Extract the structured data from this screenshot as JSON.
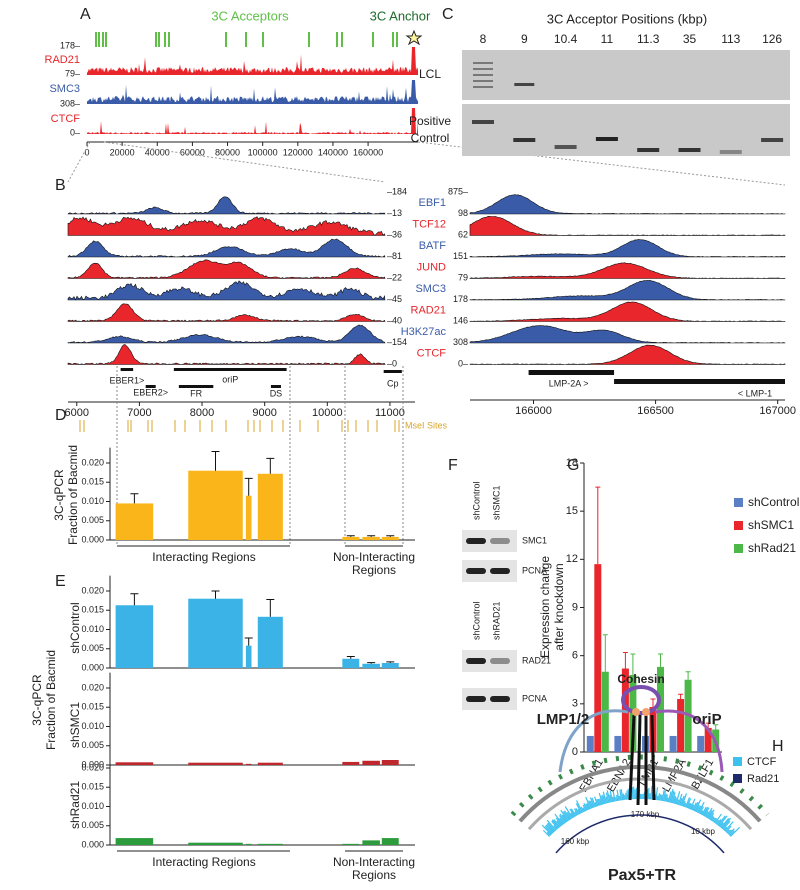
{
  "panel_labels": [
    "A",
    "B",
    "C",
    "D",
    "E",
    "F",
    "G",
    "H"
  ],
  "panel_A": {
    "acceptors_label": "3C Acceptors",
    "anchor_label": "3C Anchor",
    "tracks": [
      {
        "name": "RAD21",
        "color": "#e8262c"
      },
      {
        "name": "SMC3",
        "color": "#3a5ca8"
      },
      {
        "name": "CTCF",
        "color": "#e8262c"
      }
    ],
    "scale_labels": [
      "178–",
      "79–",
      "308–",
      "0–"
    ],
    "xlim": [
      0,
      185000
    ],
    "xticks": [
      0,
      20000,
      40000,
      60000,
      80000,
      100000,
      120000,
      140000,
      160000
    ]
  },
  "panel_B": {
    "tracks": [
      {
        "name": "EBF1",
        "color": "#3a5ca8"
      },
      {
        "name": "TCF12",
        "color": "#e8262c"
      },
      {
        "name": "BATF",
        "color": "#3a5ca8"
      },
      {
        "name": "JUND",
        "color": "#e8262c"
      },
      {
        "name": "SMC3",
        "color": "#3a5ca8"
      },
      {
        "name": "RAD21",
        "color": "#e8262c"
      },
      {
        "name": "H3K27ac",
        "color": "#3a5ca8"
      },
      {
        "name": "CTCF",
        "color": "#e8262c"
      }
    ],
    "left_scale_labels": [
      "–184",
      "–13",
      "–36",
      "–81",
      "–22",
      "–45",
      "–40",
      "–154",
      "–0"
    ],
    "right_scale_labels": [
      "875–",
      "98",
      "62",
      "151",
      "79",
      "178",
      "146",
      "308",
      "0–"
    ],
    "left_xlim": [
      5860,
      11400
    ],
    "left_xticks": [
      6000,
      7000,
      8000,
      9000,
      10000,
      11000
    ],
    "left_features": [
      {
        "label": "EBER1>",
        "range": [
          6700,
          6900
        ]
      },
      {
        "label": "EBER2>",
        "range": [
          7100,
          7260
        ]
      },
      {
        "label": "oriP",
        "range": [
          7550,
          9350
        ]
      },
      {
        "label": "FR",
        "range": [
          7630,
          8180
        ]
      },
      {
        "label": "DS",
        "range": [
          9100,
          9260
        ]
      },
      {
        "label": "Cp",
        "range": [
          10900,
          11190
        ]
      }
    ],
    "msei_label": "MseI Sites",
    "right_xlim": [
      165740,
      167030
    ],
    "right_xticks": [
      166000,
      166500,
      167000
    ],
    "right_features": [
      {
        "label": "LMP-2A >",
        "range": [
          165980,
          166330
        ]
      },
      {
        "label": "< LMP-1",
        "range": [
          166330,
          167030
        ]
      }
    ]
  },
  "panel_C": {
    "title": "3C Acceptor Positions (kbp)",
    "positions": [
      "8",
      "9",
      "10.4",
      "11",
      "11.3",
      "35",
      "113",
      "126"
    ],
    "row_labels": [
      [
        "LCL"
      ],
      [
        "Positive",
        "Control"
      ]
    ]
  },
  "panel_D": {
    "ylabel": [
      "3C-qPCR",
      "Fraction of Bacmid"
    ],
    "ylim": [
      0,
      0.024
    ],
    "yticks": [
      {
        "value": 0,
        "label": "0.000"
      },
      {
        "value": 0.005,
        "label": "0.005"
      },
      {
        "value": 0.01,
        "label": "0.010"
      },
      {
        "value": 0.015,
        "label": "0.015"
      },
      {
        "value": 0.02,
        "label": "0.020"
      }
    ],
    "color": "#f9b51a",
    "regions": [
      [
        6620,
        7220
      ],
      [
        7780,
        8650
      ],
      [
        8700,
        8790
      ],
      [
        8890,
        9290
      ],
      [
        10240,
        10510
      ],
      [
        10560,
        10840
      ],
      [
        10870,
        11140
      ]
    ],
    "values": [
      0.0095,
      0.018,
      0.0115,
      0.0172,
      0.0008,
      0.0008,
      0.0008
    ],
    "errors": [
      0.0025,
      0.005,
      0.0045,
      0.004,
      0.0003,
      0.0003,
      0.0003
    ],
    "groups": [
      [
        "Interacting Regions"
      ],
      [
        "Non-Interacting",
        "Regions"
      ]
    ]
  },
  "panel_E": {
    "ylabel": [
      "3C-qPCR",
      "Fraction of Bacmid"
    ],
    "subplots": [
      {
        "name": "shControl",
        "color": "#3cb3e6",
        "values": [
          0.0163,
          0.018,
          0.0058,
          0.0133,
          0.0024,
          0.0011,
          0.0013
        ],
        "errors": [
          0.003,
          0.002,
          0.002,
          0.0045,
          0.0006,
          0.0003,
          0.0003
        ]
      },
      {
        "name": "shSMC1",
        "color": "#c0272d",
        "values": [
          0.0007,
          0.0006,
          0.0003,
          0.0006,
          0.0008,
          0.0011,
          0.0013
        ],
        "errors": [
          0,
          0,
          0,
          0,
          0,
          0,
          0
        ]
      },
      {
        "name": "shRad21",
        "color": "#2c9c3c",
        "values": [
          0.0018,
          0.0006,
          0.0003,
          0.0003,
          0.0003,
          0.0012,
          0.0018
        ],
        "errors": [
          0,
          0,
          0,
          0,
          0,
          0,
          0
        ]
      }
    ],
    "groups": [
      [
        "Interacting Regions"
      ],
      [
        "Non-Interacting",
        "Regions"
      ]
    ]
  },
  "panel_F": {
    "blots": [
      {
        "lanes": [
          "shControl",
          "shSMC1"
        ],
        "rows": [
          "SMC1",
          "PCNA"
        ]
      },
      {
        "lanes": [
          "shControl",
          "shRAD21"
        ],
        "rows": [
          "RAD21",
          "PCNA"
        ]
      }
    ]
  },
  "panel_G": {
    "type": "bar",
    "ylabel": [
      "Expression change",
      "after knockdown"
    ],
    "categories": [
      "EBNA1",
      "EBNA2",
      "LMP1",
      "LMP2A",
      "BZLF1"
    ],
    "series": [
      {
        "name": "shControl",
        "color": "#5b7fc4",
        "values": [
          1,
          1,
          1,
          1,
          1
        ],
        "errors": [
          0,
          0,
          0,
          0,
          0
        ]
      },
      {
        "name": "shSMC1",
        "color": "#e8262c",
        "values": [
          11.7,
          5.2,
          2.8,
          3.3,
          1.5
        ],
        "errors": [
          4.8,
          1.0,
          0.5,
          0.3,
          0.3
        ]
      },
      {
        "name": "shRad21",
        "color": "#4cb848",
        "values": [
          5.0,
          4.8,
          5.3,
          4.5,
          1.4
        ],
        "errors": [
          2.3,
          1.3,
          0.8,
          0.5,
          0.3
        ]
      }
    ],
    "ylim": [
      0,
      18
    ],
    "yticks": [
      0,
      3,
      6,
      9,
      12,
      15,
      18
    ],
    "legend": "top right"
  },
  "panel_H": {
    "cohesin": "Cohesin",
    "lmp": "LMP1/2",
    "orip": "oriP",
    "pax": "Pax5+TR",
    "kbp": [
      "170 kbp",
      "160 kbp",
      "10 kbp"
    ],
    "legend": [
      {
        "name": "CTCF",
        "color": "#3cc1ef"
      },
      {
        "name": "Rad21",
        "color": "#1f2a6b"
      }
    ]
  }
}
